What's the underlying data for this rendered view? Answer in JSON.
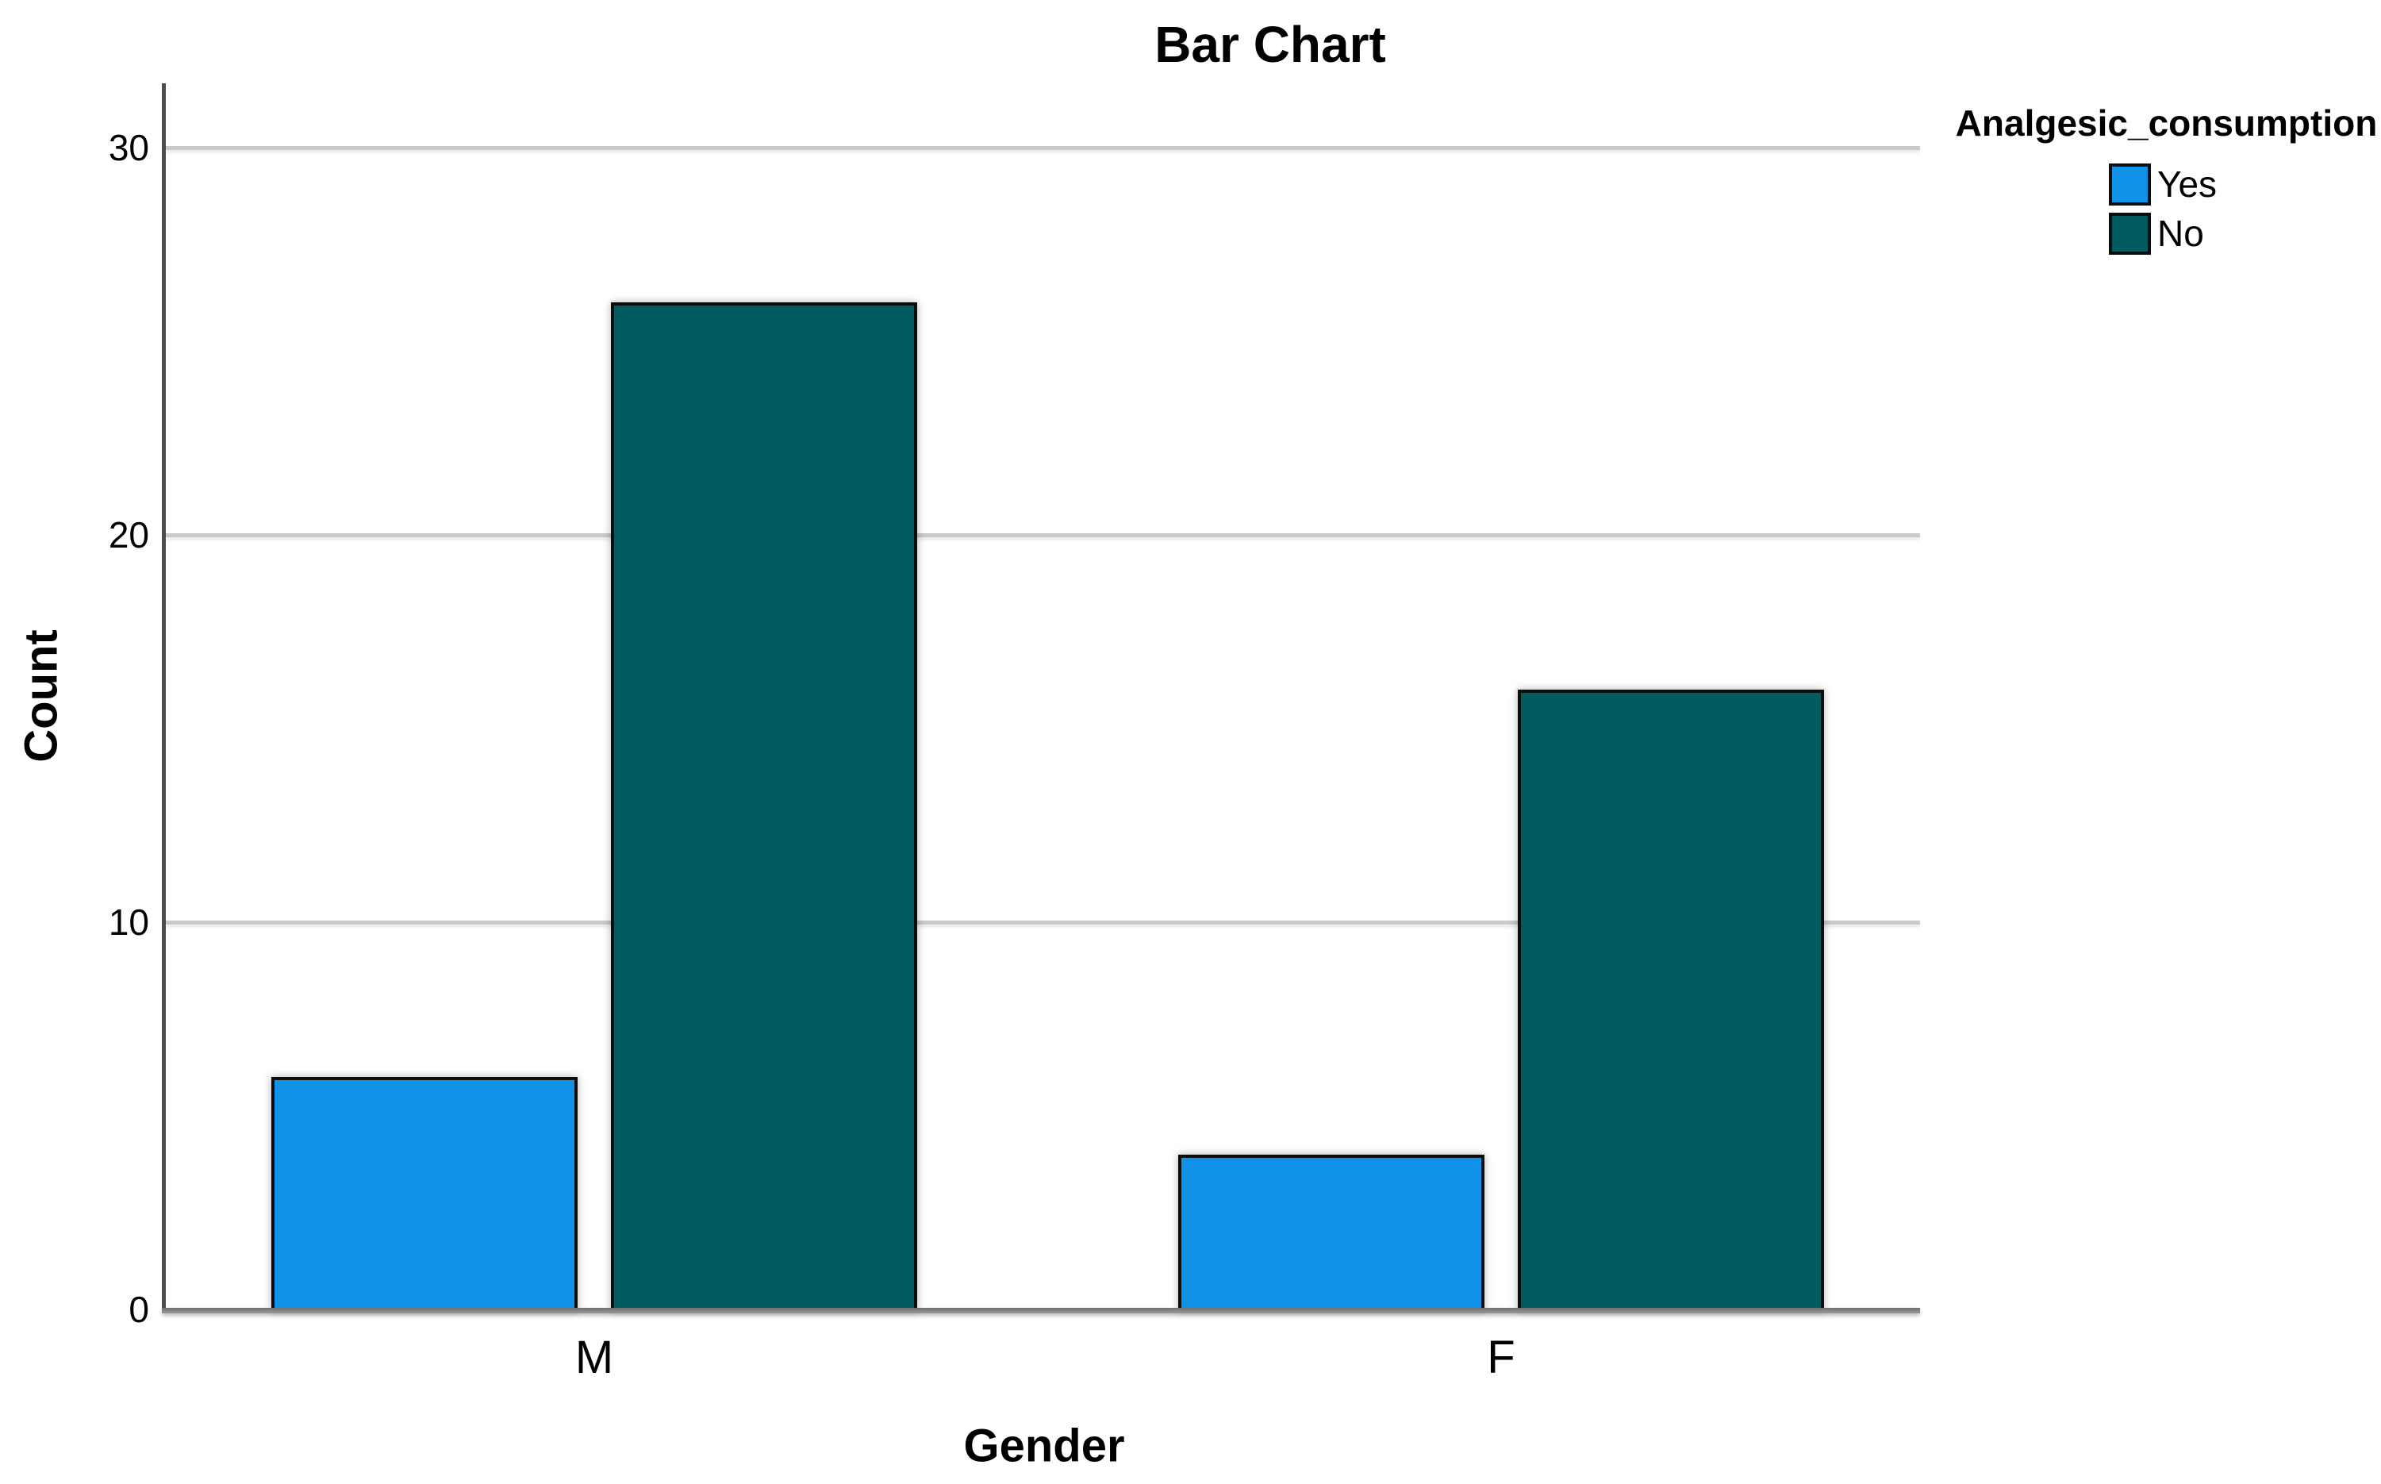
{
  "chart_data": {
    "type": "bar",
    "title": "Bar Chart",
    "categories": [
      "M",
      "F"
    ],
    "series": [
      {
        "name": "Yes",
        "color": "#1191E8",
        "values": [
          6,
          4
        ]
      },
      {
        "name": "No",
        "color": "#005C5E",
        "values": [
          26,
          16
        ]
      }
    ],
    "xlabel": "Gender",
    "ylabel": "Count",
    "ylim": [
      0,
      31.65
    ],
    "y_ticks": [
      0,
      10,
      20,
      30
    ],
    "grid": true,
    "legend": {
      "title": "Analgesic_consumption",
      "position": "top-right",
      "entries": [
        "Yes",
        "No"
      ]
    }
  },
  "colors": {
    "axis_line": "#4d4d4d",
    "baseline": "#8a8a8a",
    "gridline": "#c9c9c9",
    "bar_border": "#0d0d0d",
    "text": "#000000",
    "background": "#ffffff"
  }
}
